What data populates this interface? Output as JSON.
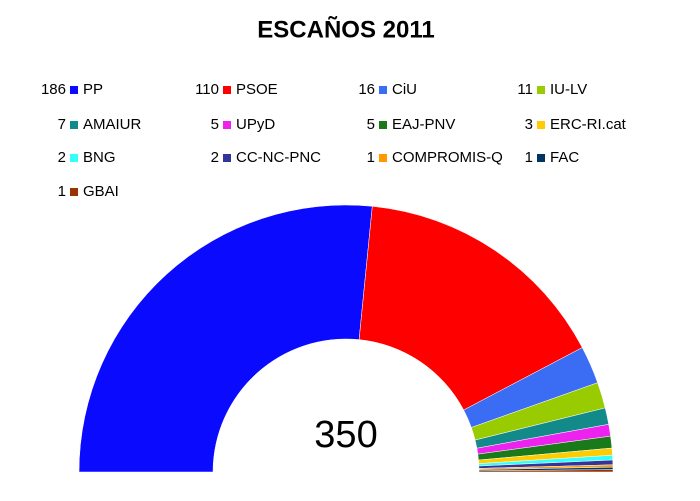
{
  "chart_data": {
    "type": "semicircle",
    "title": "ESCAÑOS 2011",
    "total": 350,
    "categories": [
      "PP",
      "PSOE",
      "CiU",
      "IU-LV",
      "AMAIUR",
      "UPyD",
      "EAJ-PNV",
      "ERC-RI.cat",
      "BNG",
      "CC-NC-PNC",
      "COMPROMIS-Q",
      "FAC",
      "GBAI"
    ],
    "values": [
      186,
      110,
      16,
      11,
      7,
      5,
      5,
      3,
      2,
      2,
      1,
      1,
      1
    ],
    "colors": [
      "#0a0aff",
      "#ff0000",
      "#3a6cf4",
      "#99cc00",
      "#138a8a",
      "#ee22ee",
      "#1a7a1a",
      "#ffcc00",
      "#33ffff",
      "#333399",
      "#ff9900",
      "#003366",
      "#993300"
    ]
  }
}
